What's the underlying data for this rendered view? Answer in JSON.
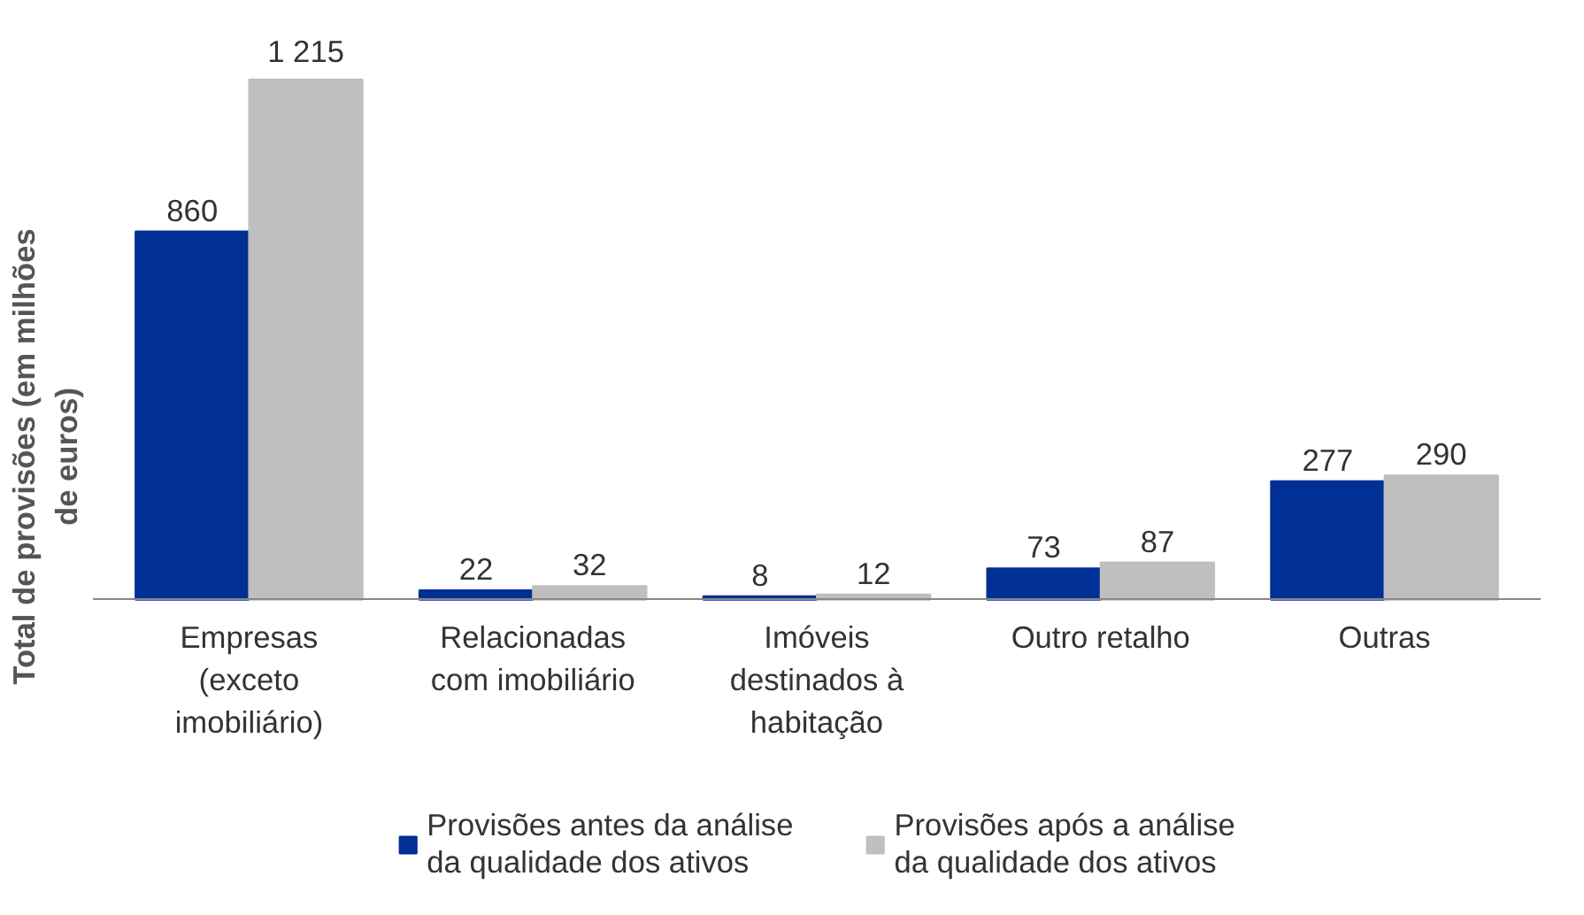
{
  "chart_data": {
    "type": "bar",
    "ylabel": "Total de provisões (em milhões\nde euros)",
    "categories": [
      "Empresas\n(exceto\nimobiliário)",
      "Relacionadas\ncom imobiliário",
      "Imóveis\ndestinados à\nhabitação",
      "Outro retalho",
      "Outras"
    ],
    "series": [
      {
        "name": "Provisões antes da análise\nda qualidade dos ativos",
        "color": "#002f96",
        "values": [
          860,
          22,
          8,
          73,
          277
        ],
        "value_labels": [
          "860",
          "22",
          "8",
          "73",
          "277"
        ]
      },
      {
        "name": "Provisões após a análise\nda qualidade dos ativos",
        "color": "#bfbfbf",
        "values": [
          1215,
          32,
          12,
          87,
          290
        ],
        "value_labels": [
          "1 215",
          "32",
          "12",
          "87",
          "290"
        ]
      }
    ],
    "legend": "bottom"
  }
}
